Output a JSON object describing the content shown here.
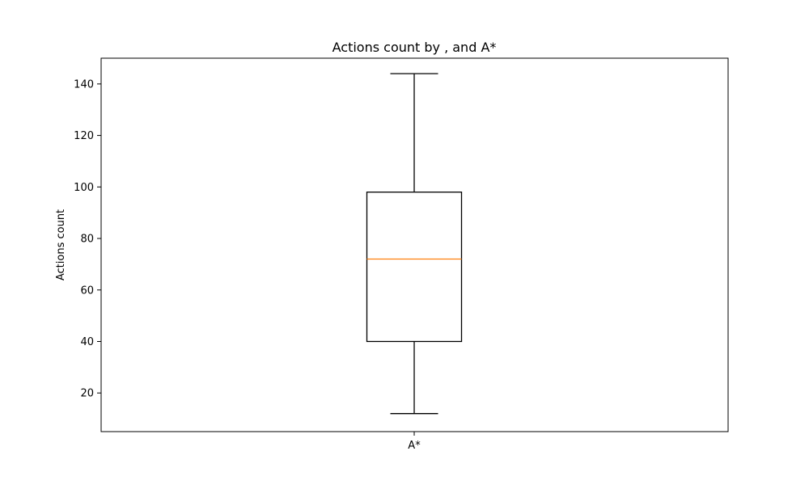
{
  "chart_data": {
    "type": "box",
    "title": "Actions count by , and A*",
    "xlabel": "",
    "ylabel": "Actions count",
    "categories": [
      "A*"
    ],
    "ylim": [
      5,
      150
    ],
    "yticks": [
      20,
      40,
      60,
      80,
      100,
      120,
      140
    ],
    "boxes": [
      {
        "category": "A*",
        "whisker_low": 12,
        "q1": 40,
        "median": 72,
        "q3": 98,
        "whisker_high": 144
      }
    ],
    "grid": false,
    "colors": {
      "box": "#000000",
      "median": "#ff7f0e"
    }
  }
}
